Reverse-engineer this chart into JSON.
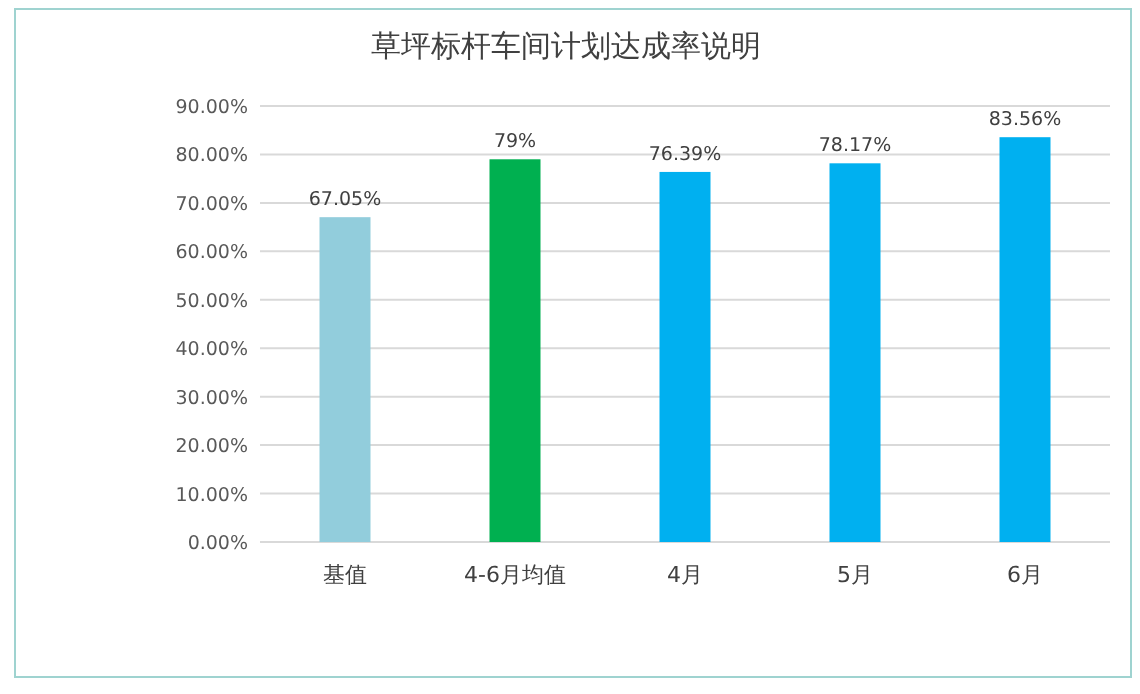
{
  "chart_data": {
    "type": "bar",
    "title": "草坪标杆车间计划达成率说明",
    "categories": [
      "基值",
      "4-6月均值",
      "4月",
      "5月",
      "6月"
    ],
    "values": [
      67.05,
      79,
      76.39,
      78.17,
      83.56
    ],
    "colors": [
      "#92cddc",
      "#00b050",
      "#00b0f0",
      "#00b0f0",
      "#00b0f0"
    ],
    "value_labels": [
      "67.05%",
      "79%",
      "76.39%",
      "78.17%",
      "83.56%"
    ],
    "ylim": [
      0,
      90
    ],
    "yticks": [
      {
        "value": 0,
        "label": "0.00%"
      },
      {
        "value": 10,
        "label": "10.00%"
      },
      {
        "value": 20,
        "label": "20.00%"
      },
      {
        "value": 30,
        "label": "30.00%"
      },
      {
        "value": 40,
        "label": "40.00%"
      },
      {
        "value": 50,
        "label": "50.00%"
      },
      {
        "value": 60,
        "label": "60.00%"
      },
      {
        "value": 70,
        "label": "70.00%"
      },
      {
        "value": 80,
        "label": "80.00%"
      },
      {
        "value": 90,
        "label": "90.00%"
      }
    ],
    "grid": "y"
  }
}
